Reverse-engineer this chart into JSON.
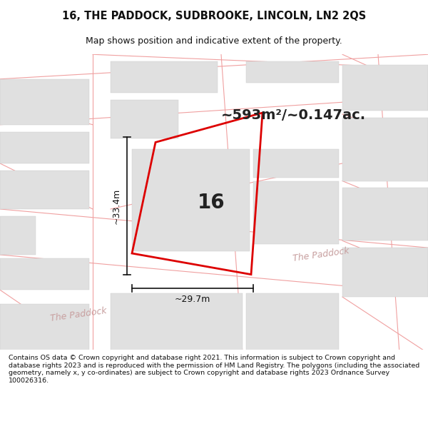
{
  "title_line1": "16, THE PADDOCK, SUDBROOKE, LINCOLN, LN2 2QS",
  "title_line2": "Map shows position and indicative extent of the property.",
  "area_label": "~593m²/~0.147ac.",
  "plot_number": "16",
  "dim_width": "~29.7m",
  "dim_height": "~33.4m",
  "street_name1": "The Paddock",
  "street_name2": "The Paddock",
  "footer": "Contains OS data © Crown copyright and database right 2021. This information is subject to Crown copyright and database rights 2023 and is reproduced with the permission of HM Land Registry. The polygons (including the associated geometry, namely x, y co-ordinates) are subject to Crown copyright and database rights 2023 Ordnance Survey 100026316.",
  "map_bg": "#f8f8f8",
  "building_color": "#e0e0e0",
  "plot_outline_color": "#dd0000",
  "dim_line_color": "#111111",
  "title_color": "#111111",
  "footer_color": "#111111",
  "road_line_color": "#f0a0a0",
  "street_text_color": "#c8a0a0",
  "title_fontsize": 10.5,
  "subtitle_fontsize": 9,
  "area_fontsize": 14,
  "plot_num_fontsize": 20,
  "dim_fontsize": 9,
  "street_fontsize": 9,
  "footer_fontsize": 6.8
}
